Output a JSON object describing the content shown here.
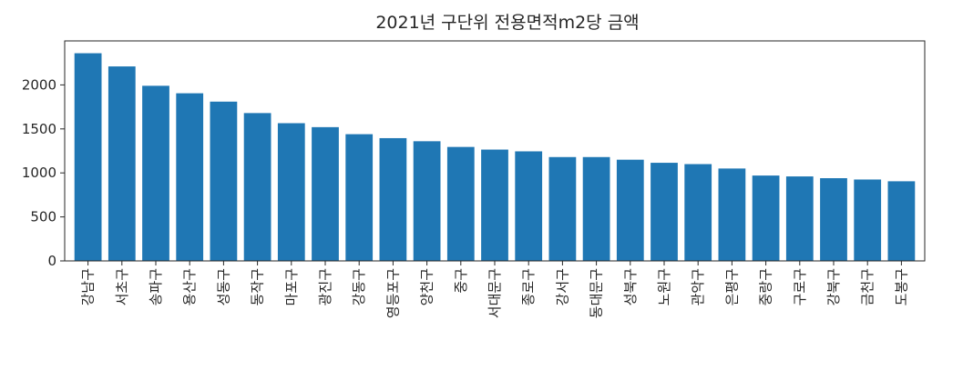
{
  "chart_data": {
    "type": "bar",
    "title": "2021년 구단위 전용면적m2당 금액",
    "xlabel": "",
    "ylabel": "",
    "categories": [
      "강남구",
      "서초구",
      "송파구",
      "용산구",
      "성동구",
      "동작구",
      "마포구",
      "광진구",
      "강동구",
      "영등포구",
      "양천구",
      "중구",
      "서대문구",
      "종로구",
      "강서구",
      "동대문구",
      "성북구",
      "노원구",
      "관악구",
      "은평구",
      "중랑구",
      "구로구",
      "강북구",
      "금천구",
      "도봉구"
    ],
    "values": [
      2360,
      2210,
      1990,
      1905,
      1810,
      1680,
      1565,
      1520,
      1440,
      1395,
      1360,
      1295,
      1265,
      1245,
      1180,
      1180,
      1150,
      1115,
      1100,
      1050,
      970,
      960,
      940,
      925,
      905
    ],
    "ylim": [
      0,
      2500
    ],
    "yticks": [
      0,
      500,
      1000,
      1500,
      2000
    ],
    "color": "#1f77b4",
    "grid": false,
    "legend": "none"
  }
}
